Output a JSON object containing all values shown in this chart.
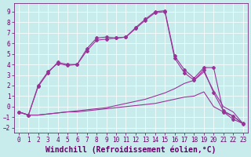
{
  "bg_color": "#c8ecec",
  "grid_color": "#ffffff",
  "line_color": "#993399",
  "xlim": [
    -0.5,
    23.5
  ],
  "ylim": [
    -2.5,
    9.8
  ],
  "xticks": [
    0,
    1,
    2,
    3,
    4,
    5,
    6,
    7,
    8,
    9,
    10,
    11,
    12,
    13,
    14,
    15,
    16,
    17,
    18,
    19,
    20,
    21,
    22,
    23
  ],
  "yticks": [
    -2,
    -1,
    0,
    1,
    2,
    3,
    4,
    5,
    6,
    7,
    8,
    9
  ],
  "xlabel": "Windchill (Refroidissement éolien,°C)",
  "font_color": "#660066",
  "tick_fontsize": 5.5,
  "label_fontsize": 7.0,
  "flat1_x": [
    0,
    1,
    2,
    3,
    4,
    5,
    6,
    7,
    8,
    9,
    10,
    11,
    12,
    13,
    14,
    15,
    16,
    17,
    18,
    19,
    20,
    21,
    22,
    23
  ],
  "flat1_y": [
    -0.5,
    -0.8,
    -0.8,
    -0.7,
    -0.6,
    -0.5,
    -0.5,
    -0.4,
    -0.3,
    -0.2,
    -0.1,
    0.0,
    0.1,
    0.2,
    0.3,
    0.5,
    0.7,
    0.9,
    1.0,
    1.4,
    0.0,
    -0.5,
    -0.9,
    -1.6
  ],
  "flat2_x": [
    0,
    1,
    2,
    3,
    4,
    5,
    6,
    7,
    8,
    9,
    10,
    11,
    12,
    13,
    14,
    15,
    16,
    17,
    18,
    19,
    20,
    21,
    22,
    23
  ],
  "flat2_y": [
    -0.5,
    -0.8,
    -0.8,
    -0.7,
    -0.6,
    -0.5,
    -0.4,
    -0.3,
    -0.2,
    -0.1,
    0.1,
    0.3,
    0.5,
    0.7,
    1.0,
    1.3,
    1.7,
    2.2,
    2.5,
    3.3,
    1.5,
    0.0,
    -0.5,
    -1.6
  ],
  "sharp1_x": [
    0,
    1,
    2,
    3,
    4,
    5,
    6,
    7,
    8,
    9,
    10,
    11,
    12,
    13,
    14,
    15,
    16,
    17,
    18,
    19,
    20,
    21,
    22,
    23
  ],
  "sharp1_y": [
    -0.5,
    -0.8,
    1.9,
    3.2,
    4.2,
    4.0,
    4.0,
    5.5,
    6.5,
    6.6,
    6.5,
    6.6,
    7.5,
    8.3,
    9.0,
    9.1,
    4.8,
    3.5,
    2.7,
    3.7,
    3.7,
    -0.5,
    -1.2,
    -1.6
  ],
  "sharp2_x": [
    0,
    1,
    2,
    3,
    4,
    5,
    6,
    7,
    8,
    9,
    10,
    11,
    12,
    13,
    14,
    15,
    16,
    17,
    18,
    19,
    20,
    21,
    22,
    23
  ],
  "sharp2_y": [
    -0.5,
    -0.8,
    2.0,
    3.3,
    4.1,
    3.9,
    4.0,
    5.3,
    6.3,
    6.4,
    6.5,
    6.6,
    7.4,
    8.2,
    8.9,
    9.0,
    4.6,
    3.2,
    2.5,
    3.5,
    1.3,
    -0.4,
    -0.9,
    -1.65
  ]
}
